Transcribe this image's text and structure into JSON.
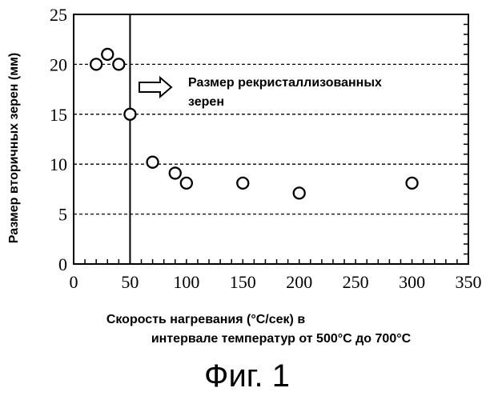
{
  "chart_data": {
    "type": "scatter",
    "ylabel": "Размер вторичных зерен  (мм)",
    "xlabel_line1": "Скорость нагревания (°С/сек) в",
    "xlabel_line2": "интервале температур от 500°С до 700°С",
    "xlim": [
      0,
      350
    ],
    "ylim": [
      0,
      25
    ],
    "xticks": [
      0,
      50,
      100,
      150,
      200,
      250,
      300,
      350
    ],
    "yticks": [
      0,
      5,
      10,
      15,
      20,
      25
    ],
    "grid_y": [
      5,
      10,
      15,
      20
    ],
    "vertical_line_x": 50,
    "series": [
      {
        "x": [
          20,
          30,
          40,
          50,
          70,
          90,
          100,
          150,
          200,
          300
        ],
        "y": [
          20,
          21,
          20,
          15,
          10.2,
          9.1,
          8.1,
          8.1,
          7.1,
          8.1
        ]
      }
    ],
    "annotation_line1": "Размер рекристаллизованных",
    "annotation_line2": "зерен"
  },
  "caption": "Фиг. 1"
}
